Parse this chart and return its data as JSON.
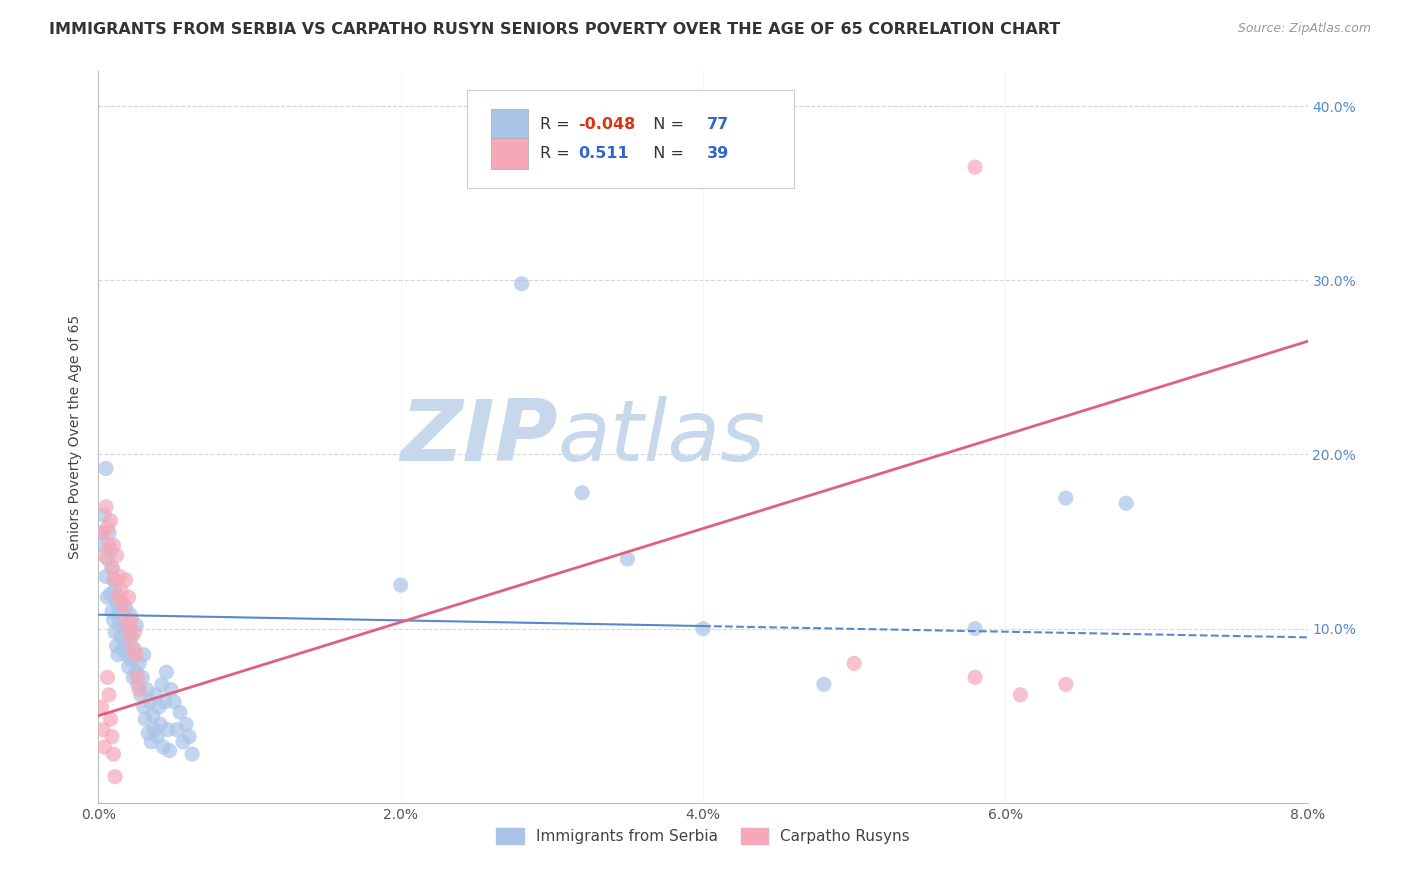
{
  "title": "IMMIGRANTS FROM SERBIA VS CARPATHO RUSYN SENIORS POVERTY OVER THE AGE OF 65 CORRELATION CHART",
  "source": "Source: ZipAtlas.com",
  "ylabel": "Seniors Poverty Over the Age of 65",
  "xlabel_serbia": "Immigrants from Serbia",
  "xlabel_rusyn": "Carpatho Rusyns",
  "xmin": 0.0,
  "xmax": 0.08,
  "ymin": 0.0,
  "ymax": 0.42,
  "yticks": [
    0.1,
    0.2,
    0.3,
    0.4
  ],
  "ytick_labels_left": [
    "",
    "",
    "",
    ""
  ],
  "ytick_labels_right": [
    "10.0%",
    "20.0%",
    "30.0%",
    "40.0%"
  ],
  "xticks": [
    0.0,
    0.02,
    0.04,
    0.06,
    0.08
  ],
  "xtick_labels": [
    "0.0%",
    "2.0%",
    "4.0%",
    "6.0%",
    "8.0%"
  ],
  "serbia_R": -0.048,
  "serbia_N": 77,
  "rusyn_R": 0.511,
  "rusyn_N": 39,
  "serbia_color": "#aac4e8",
  "rusyn_color": "#f5a8b8",
  "serbia_line_color": "#5588cc",
  "rusyn_line_color": "#e06080",
  "serbia_line_y0": 0.108,
  "serbia_line_y1": 0.095,
  "rusyn_line_y0": 0.05,
  "rusyn_line_y1": 0.265,
  "serbia_scatter": [
    [
      0.0002,
      0.155
    ],
    [
      0.0003,
      0.148
    ],
    [
      0.0004,
      0.165
    ],
    [
      0.0005,
      0.192
    ],
    [
      0.0005,
      0.13
    ],
    [
      0.0006,
      0.14
    ],
    [
      0.0006,
      0.118
    ],
    [
      0.0007,
      0.155
    ],
    [
      0.0008,
      0.145
    ],
    [
      0.0008,
      0.12
    ],
    [
      0.0009,
      0.135
    ],
    [
      0.0009,
      0.11
    ],
    [
      0.001,
      0.128
    ],
    [
      0.001,
      0.105
    ],
    [
      0.0011,
      0.122
    ],
    [
      0.0011,
      0.098
    ],
    [
      0.0012,
      0.115
    ],
    [
      0.0012,
      0.09
    ],
    [
      0.0013,
      0.108
    ],
    [
      0.0013,
      0.085
    ],
    [
      0.0014,
      0.102
    ],
    [
      0.0015,
      0.095
    ],
    [
      0.0015,
      0.115
    ],
    [
      0.0016,
      0.088
    ],
    [
      0.0017,
      0.1
    ],
    [
      0.0018,
      0.092
    ],
    [
      0.0018,
      0.112
    ],
    [
      0.0019,
      0.085
    ],
    [
      0.002,
      0.098
    ],
    [
      0.002,
      0.078
    ],
    [
      0.0021,
      0.108
    ],
    [
      0.0022,
      0.082
    ],
    [
      0.0022,
      0.095
    ],
    [
      0.0023,
      0.072
    ],
    [
      0.0024,
      0.088
    ],
    [
      0.0025,
      0.075
    ],
    [
      0.0025,
      0.102
    ],
    [
      0.0026,
      0.068
    ],
    [
      0.0027,
      0.08
    ],
    [
      0.0028,
      0.062
    ],
    [
      0.0029,
      0.072
    ],
    [
      0.003,
      0.055
    ],
    [
      0.003,
      0.085
    ],
    [
      0.0031,
      0.048
    ],
    [
      0.0032,
      0.065
    ],
    [
      0.0033,
      0.04
    ],
    [
      0.0034,
      0.058
    ],
    [
      0.0035,
      0.035
    ],
    [
      0.0036,
      0.05
    ],
    [
      0.0037,
      0.042
    ],
    [
      0.0038,
      0.062
    ],
    [
      0.0039,
      0.038
    ],
    [
      0.004,
      0.055
    ],
    [
      0.0041,
      0.045
    ],
    [
      0.0042,
      0.068
    ],
    [
      0.0043,
      0.032
    ],
    [
      0.0044,
      0.058
    ],
    [
      0.0045,
      0.075
    ],
    [
      0.0046,
      0.042
    ],
    [
      0.0047,
      0.03
    ],
    [
      0.0048,
      0.065
    ],
    [
      0.005,
      0.058
    ],
    [
      0.0052,
      0.042
    ],
    [
      0.0054,
      0.052
    ],
    [
      0.0056,
      0.035
    ],
    [
      0.0058,
      0.045
    ],
    [
      0.006,
      0.038
    ],
    [
      0.0062,
      0.028
    ],
    [
      0.028,
      0.298
    ],
    [
      0.032,
      0.178
    ],
    [
      0.04,
      0.1
    ],
    [
      0.048,
      0.068
    ],
    [
      0.058,
      0.1
    ],
    [
      0.064,
      0.175
    ],
    [
      0.068,
      0.172
    ],
    [
      0.035,
      0.14
    ],
    [
      0.02,
      0.125
    ]
  ],
  "rusyn_scatter": [
    [
      0.0003,
      0.155
    ],
    [
      0.0004,
      0.142
    ],
    [
      0.0005,
      0.17
    ],
    [
      0.0006,
      0.158
    ],
    [
      0.0007,
      0.148
    ],
    [
      0.0008,
      0.162
    ],
    [
      0.0009,
      0.135
    ],
    [
      0.001,
      0.148
    ],
    [
      0.0011,
      0.128
    ],
    [
      0.0012,
      0.142
    ],
    [
      0.0013,
      0.118
    ],
    [
      0.0014,
      0.13
    ],
    [
      0.0015,
      0.122
    ],
    [
      0.0016,
      0.115
    ],
    [
      0.0017,
      0.108
    ],
    [
      0.0018,
      0.128
    ],
    [
      0.0019,
      0.102
    ],
    [
      0.002,
      0.118
    ],
    [
      0.0021,
      0.095
    ],
    [
      0.0022,
      0.105
    ],
    [
      0.0023,
      0.088
    ],
    [
      0.0024,
      0.098
    ],
    [
      0.0006,
      0.072
    ],
    [
      0.0007,
      0.062
    ],
    [
      0.0008,
      0.048
    ],
    [
      0.0009,
      0.038
    ],
    [
      0.001,
      0.028
    ],
    [
      0.0011,
      0.015
    ],
    [
      0.0002,
      0.055
    ],
    [
      0.0003,
      0.042
    ],
    [
      0.0004,
      0.032
    ],
    [
      0.0025,
      0.085
    ],
    [
      0.0026,
      0.072
    ],
    [
      0.0027,
      0.065
    ],
    [
      0.058,
      0.072
    ],
    [
      0.061,
      0.062
    ],
    [
      0.064,
      0.068
    ],
    [
      0.05,
      0.08
    ],
    [
      0.058,
      0.365
    ]
  ],
  "watermark_zip": "ZIP",
  "watermark_atlas": "atlas",
  "watermark_color": "#dde5f0",
  "background_color": "#ffffff",
  "grid_color": "#d8d8d8",
  "title_fontsize": 11.5,
  "axis_label_fontsize": 10,
  "tick_fontsize": 10,
  "right_tick_color": "#5588cc"
}
